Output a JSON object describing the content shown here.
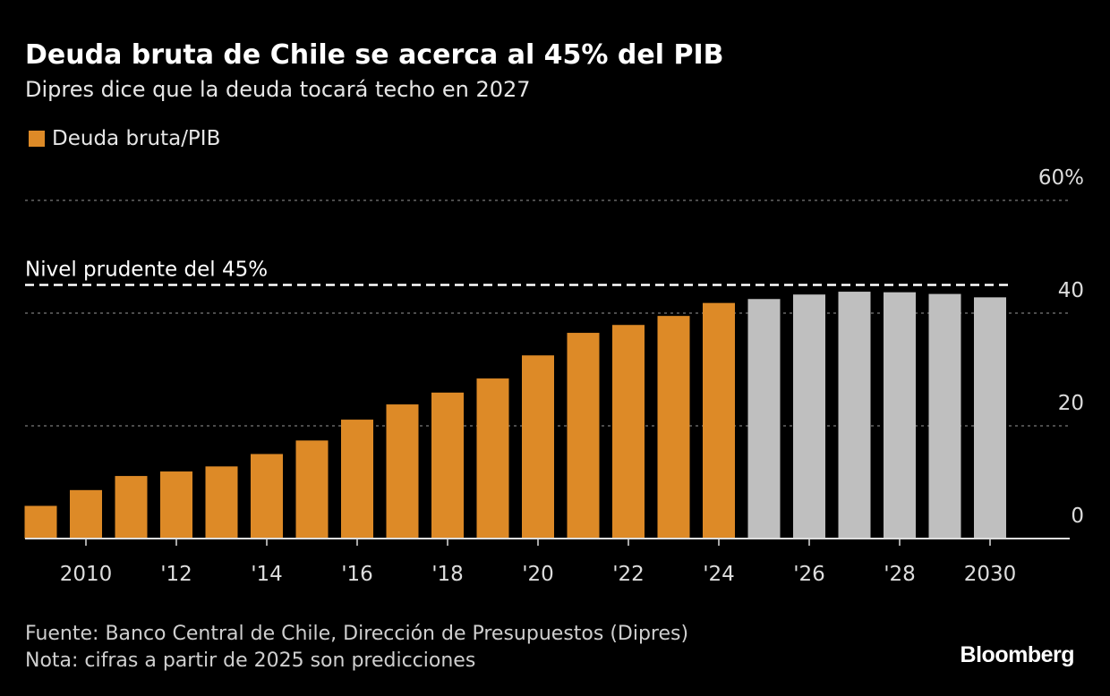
{
  "title": "Deuda bruta de Chile se acerca al 45% del PIB",
  "subtitle": "Dipres dice que la deuda tocará techo en 2027",
  "footer": {
    "source": "Fuente: Banco Central de Chile, Dirección de Presupuestos (Dipres)",
    "note": "Nota: cifras a partir de 2025 son predicciones",
    "logo": "Bloomberg"
  },
  "chart_data": {
    "type": "bar",
    "title": "Deuda bruta de Chile se acerca al 45% del PIB",
    "legend": [
      {
        "label": "Deuda bruta/PIB",
        "color": "#dd8a27"
      }
    ],
    "legend_placement": "top-left",
    "categories": [
      2009,
      2010,
      2011,
      2012,
      2013,
      2014,
      2015,
      2016,
      2017,
      2018,
      2019,
      2020,
      2021,
      2022,
      2023,
      2024,
      2025,
      2026,
      2027,
      2028,
      2029,
      2030
    ],
    "values": [
      5.8,
      8.6,
      11.1,
      11.9,
      12.8,
      15.0,
      17.4,
      21.1,
      23.8,
      25.9,
      28.4,
      32.5,
      36.5,
      37.9,
      39.5,
      41.8,
      42.5,
      43.3,
      43.8,
      43.7,
      43.4,
      42.8
    ],
    "forecast_from": 2025,
    "colors": {
      "actual": "#dd8a27",
      "forecast": "#bfbfbf"
    },
    "x_tick_values": [
      2010,
      2012,
      2014,
      2016,
      2018,
      2020,
      2022,
      2024,
      2026,
      2028,
      2030
    ],
    "x_tick_labels": [
      "2010",
      "'12",
      "'14",
      "'16",
      "'18",
      "'20",
      "'22",
      "'24",
      "'26",
      "'28",
      "2030"
    ],
    "y_tick_values": [
      0,
      20,
      40,
      60
    ],
    "y_tick_labels": [
      "0",
      "20",
      "40",
      "60%"
    ],
    "ylim": [
      0,
      60
    ],
    "grid": true,
    "reference_line": {
      "value": 45,
      "label": "Nivel prudente del 45%"
    },
    "xlabel": "",
    "ylabel": ""
  }
}
